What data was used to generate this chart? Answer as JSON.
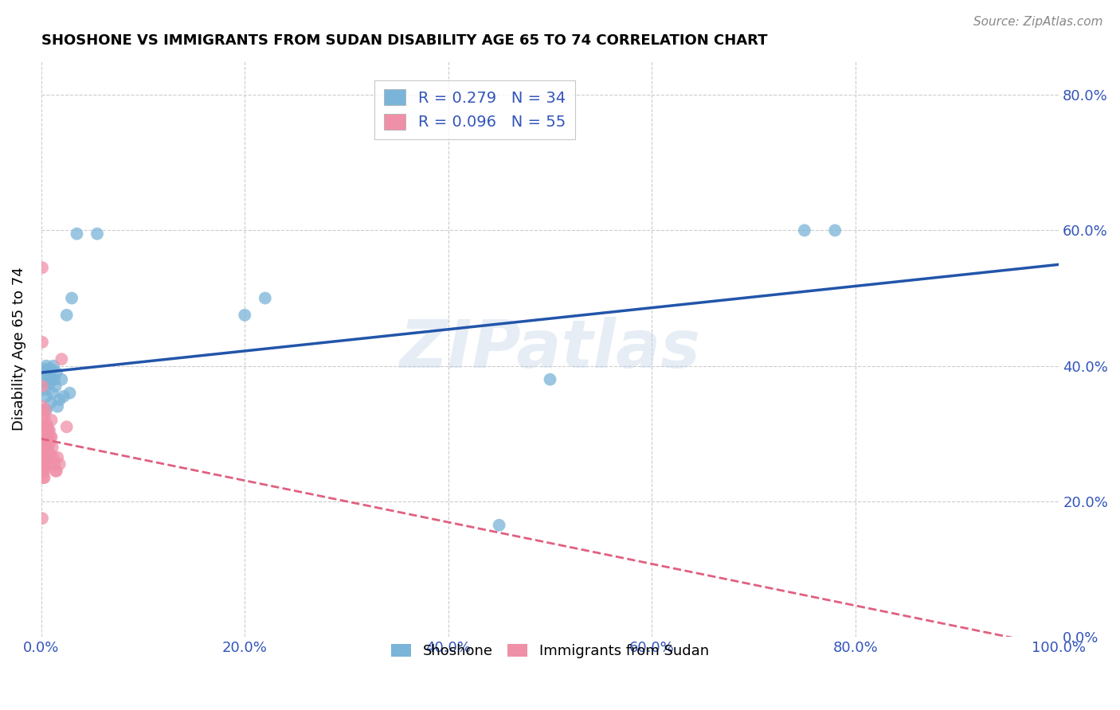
{
  "title": "SHOSHONE VS IMMIGRANTS FROM SUDAN DISABILITY AGE 65 TO 74 CORRELATION CHART",
  "source": "Source: ZipAtlas.com",
  "ylabel": "Disability Age 65 to 74",
  "xlim": [
    0.0,
    1.0
  ],
  "ylim": [
    0.0,
    0.85
  ],
  "xticks": [
    0.0,
    0.2,
    0.4,
    0.6,
    0.8,
    1.0
  ],
  "yticks": [
    0.0,
    0.2,
    0.4,
    0.6,
    0.8
  ],
  "watermark": "ZIPatlas",
  "shoshone_x": [
    0.002,
    0.003,
    0.003,
    0.004,
    0.004,
    0.005,
    0.005,
    0.005,
    0.006,
    0.007,
    0.008,
    0.009,
    0.01,
    0.01,
    0.011,
    0.012,
    0.013,
    0.014,
    0.015,
    0.016,
    0.018,
    0.02,
    0.022,
    0.025,
    0.028,
    0.03,
    0.035,
    0.055,
    0.2,
    0.22,
    0.45,
    0.5,
    0.75,
    0.78
  ],
  "shoshone_y": [
    0.335,
    0.385,
    0.365,
    0.395,
    0.375,
    0.4,
    0.355,
    0.335,
    0.385,
    0.395,
    0.375,
    0.345,
    0.395,
    0.38,
    0.36,
    0.4,
    0.38,
    0.37,
    0.39,
    0.34,
    0.35,
    0.38,
    0.355,
    0.475,
    0.36,
    0.5,
    0.595,
    0.595,
    0.475,
    0.5,
    0.165,
    0.38,
    0.6,
    0.6
  ],
  "sudan_x": [
    0.001,
    0.001,
    0.001,
    0.001,
    0.001,
    0.001,
    0.001,
    0.001,
    0.001,
    0.001,
    0.001,
    0.002,
    0.002,
    0.002,
    0.002,
    0.002,
    0.002,
    0.002,
    0.003,
    0.003,
    0.003,
    0.003,
    0.003,
    0.003,
    0.003,
    0.003,
    0.004,
    0.004,
    0.004,
    0.004,
    0.005,
    0.005,
    0.005,
    0.005,
    0.006,
    0.006,
    0.006,
    0.006,
    0.007,
    0.007,
    0.008,
    0.008,
    0.009,
    0.009,
    0.01,
    0.01,
    0.011,
    0.012,
    0.013,
    0.014,
    0.015,
    0.016,
    0.018,
    0.02,
    0.025
  ],
  "sudan_y": [
    0.545,
    0.435,
    0.37,
    0.34,
    0.305,
    0.285,
    0.275,
    0.265,
    0.255,
    0.245,
    0.175,
    0.33,
    0.31,
    0.285,
    0.265,
    0.255,
    0.245,
    0.235,
    0.325,
    0.31,
    0.295,
    0.275,
    0.265,
    0.255,
    0.245,
    0.235,
    0.335,
    0.305,
    0.285,
    0.265,
    0.315,
    0.295,
    0.275,
    0.255,
    0.31,
    0.295,
    0.275,
    0.255,
    0.305,
    0.285,
    0.305,
    0.285,
    0.295,
    0.27,
    0.32,
    0.295,
    0.28,
    0.265,
    0.255,
    0.245,
    0.245,
    0.265,
    0.255,
    0.41,
    0.31
  ],
  "shoshone_color": "#7ab4d8",
  "sudan_color": "#f090a8",
  "shoshone_line_color": "#2255aa",
  "sudan_line_color": "#e06080",
  "background_color": "#ffffff",
  "grid_color": "#cccccc",
  "legend_R1": "R = 0.279",
  "legend_N1": "N = 34",
  "legend_R2": "R = 0.096",
  "legend_N2": "N = 55",
  "legend_label1": "Shoshone",
  "legend_label2": "Immigrants from Sudan",
  "label_color": "#3355bb"
}
